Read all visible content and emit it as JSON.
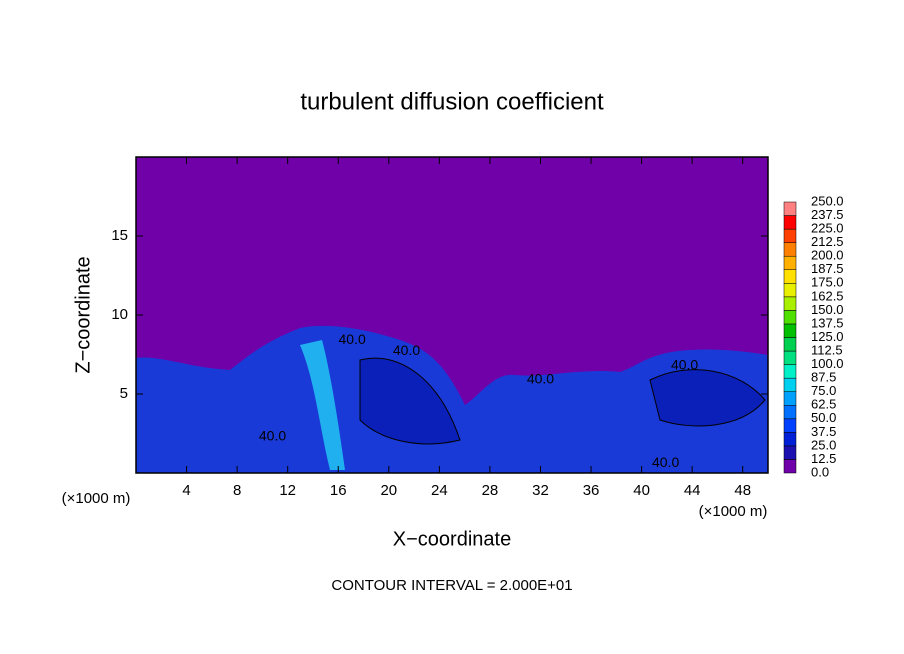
{
  "chart_data": {
    "type": "contour",
    "title": "turbulent diffusion coefficient",
    "xlabel": "X−coordinate",
    "ylabel": "Z−coordinate",
    "x_unit": "(×1000 m)",
    "y_unit": "(×1000 m)",
    "annotation": "CONTOUR INTERVAL = 2.000E+01",
    "xlim": [
      0,
      50
    ],
    "ylim": [
      0,
      20
    ],
    "xticks": [
      4,
      8,
      12,
      16,
      20,
      24,
      28,
      32,
      36,
      40,
      44,
      48
    ],
    "yticks": [
      5,
      10,
      15
    ],
    "levels": [
      {
        "value": 0,
        "label": "0.0"
      },
      {
        "value": 12.5,
        "label": "12.5"
      },
      {
        "value": 25,
        "label": "25.0"
      },
      {
        "value": 37.5,
        "label": "37.5"
      },
      {
        "value": 50,
        "label": "50.0"
      },
      {
        "value": 62.5,
        "label": "62.5"
      },
      {
        "value": 75,
        "label": "75.0"
      },
      {
        "value": 87.5,
        "label": "87.5"
      },
      {
        "value": 100,
        "label": "100.0"
      },
      {
        "value": 112.5,
        "label": "112.5"
      },
      {
        "value": 125,
        "label": "125.0"
      },
      {
        "value": 137.5,
        "label": "137.5"
      },
      {
        "value": 150,
        "label": "150.0"
      },
      {
        "value": 162.5,
        "label": "162.5"
      },
      {
        "value": 175,
        "label": "175.0"
      },
      {
        "value": 187.5,
        "label": "187.5"
      },
      {
        "value": 200,
        "label": "200.0"
      },
      {
        "value": 212.5,
        "label": "212.5"
      },
      {
        "value": 225,
        "label": "225.0"
      },
      {
        "value": 237.5,
        "label": "237.5"
      },
      {
        "value": 250,
        "label": "250.0"
      }
    ],
    "colors": [
      "#7000a8",
      "#1c10b0",
      "#0020d8",
      "#0040ff",
      "#0070ff",
      "#00a0ff",
      "#00d0f0",
      "#00f0c8",
      "#00e080",
      "#00d050",
      "#00c000",
      "#50e000",
      "#a8f000",
      "#e8f000",
      "#ffe000",
      "#ffb000",
      "#ff8000",
      "#ff4000",
      "#ff0000",
      "#ff8080"
    ],
    "contour_labels": [
      {
        "value": 40,
        "label": "40.0",
        "x": 17.1,
        "z": 8.4
      },
      {
        "value": 40,
        "label": "40.0",
        "x": 21.4,
        "z": 7.7
      },
      {
        "value": 40,
        "label": "40.0",
        "x": 32,
        "z": 5.9
      },
      {
        "value": 40,
        "label": "40.0",
        "x": 10.8,
        "z": 2.3
      },
      {
        "value": 40,
        "label": "40.0",
        "x": 43.4,
        "z": 6.8
      },
      {
        "value": 40,
        "label": "40.0",
        "x": 41.9,
        "z": 0.6
      }
    ]
  }
}
